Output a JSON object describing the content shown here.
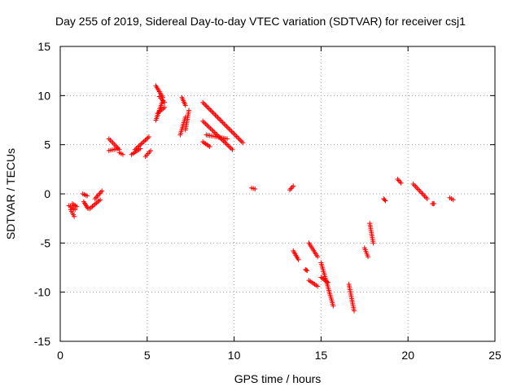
{
  "chart_data": {
    "type": "scatter",
    "title": "Day 255 of 2019, Sidereal Day-to-day VTEC variation (SDTVAR) for receiver csj1",
    "xlabel": "GPS time / hours",
    "ylabel": "SDTVAR / TECUs",
    "xlim": [
      0,
      25
    ],
    "ylim": [
      -15,
      15
    ],
    "xticks": [
      "0",
      "5",
      "10",
      "15",
      "20",
      "25"
    ],
    "yticks": [
      "15",
      "10",
      "5",
      "0",
      "-5",
      "-10",
      "-15"
    ],
    "grid": true,
    "marker": "+",
    "color": "#ff0000",
    "segments": [
      {
        "x": [
          0.5,
          0.85
        ],
        "y": [
          -1.2,
          -1.6
        ]
      },
      {
        "x": [
          0.6,
          0.8
        ],
        "y": [
          -1.6,
          -2.3
        ]
      },
      {
        "x": [
          0.7,
          0.95
        ],
        "y": [
          -1.0,
          -1.3
        ]
      },
      {
        "x": [
          1.3,
          1.55
        ],
        "y": [
          0.0,
          -0.2
        ]
      },
      {
        "x": [
          1.35,
          1.6
        ],
        "y": [
          -0.8,
          -1.5
        ]
      },
      {
        "x": [
          1.7,
          2.3
        ],
        "y": [
          -1.5,
          -0.6
        ]
      },
      {
        "x": [
          2.0,
          2.4
        ],
        "y": [
          -0.5,
          0.3
        ]
      },
      {
        "x": [
          2.8,
          3.4
        ],
        "y": [
          5.6,
          4.5
        ]
      },
      {
        "x": [
          2.8,
          3.3
        ],
        "y": [
          4.4,
          4.6
        ]
      },
      {
        "x": [
          3.4,
          3.6
        ],
        "y": [
          4.2,
          4.0
        ]
      },
      {
        "x": [
          4.1,
          4.6
        ],
        "y": [
          4.0,
          4.6
        ]
      },
      {
        "x": [
          4.3,
          5.1
        ],
        "y": [
          4.5,
          5.8
        ]
      },
      {
        "x": [
          4.9,
          5.2
        ],
        "y": [
          3.8,
          4.4
        ]
      },
      {
        "x": [
          5.5,
          5.9
        ],
        "y": [
          11.0,
          9.8
        ]
      },
      {
        "x": [
          5.7,
          6.0
        ],
        "y": [
          9.9,
          9.3
        ]
      },
      {
        "x": [
          5.5,
          5.9
        ],
        "y": [
          7.5,
          9.5
        ]
      },
      {
        "x": [
          5.6,
          6.0
        ],
        "y": [
          8.2,
          8.8
        ]
      },
      {
        "x": [
          7.0,
          7.2
        ],
        "y": [
          9.8,
          9.0
        ]
      },
      {
        "x": [
          6.9,
          7.2
        ],
        "y": [
          6.0,
          7.8
        ]
      },
      {
        "x": [
          7.2,
          7.4
        ],
        "y": [
          6.5,
          8.5
        ]
      },
      {
        "x": [
          8.2,
          10.5
        ],
        "y": [
          9.3,
          5.2
        ]
      },
      {
        "x": [
          8.2,
          9.9
        ],
        "y": [
          7.4,
          4.5
        ]
      },
      {
        "x": [
          8.4,
          9.6
        ],
        "y": [
          6.0,
          5.6
        ]
      },
      {
        "x": [
          8.2,
          8.6
        ],
        "y": [
          5.3,
          4.8
        ]
      },
      {
        "x": [
          11.0,
          11.2
        ],
        "y": [
          0.6,
          0.5
        ]
      },
      {
        "x": [
          13.2,
          13.4
        ],
        "y": [
          0.4,
          0.8
        ]
      },
      {
        "x": [
          13.4,
          13.7
        ],
        "y": [
          -5.8,
          -6.7
        ]
      },
      {
        "x": [
          14.1,
          14.2
        ],
        "y": [
          -7.7,
          -7.8
        ]
      },
      {
        "x": [
          14.3,
          14.8
        ],
        "y": [
          -5.0,
          -6.4
        ]
      },
      {
        "x": [
          14.3,
          14.8
        ],
        "y": [
          -8.8,
          -9.4
        ]
      },
      {
        "x": [
          15.0,
          15.7
        ],
        "y": [
          -7.0,
          -11.4
        ]
      },
      {
        "x": [
          15.0,
          15.4
        ],
        "y": [
          -8.5,
          -9.0
        ]
      },
      {
        "x": [
          16.6,
          16.9
        ],
        "y": [
          -9.2,
          -11.9
        ]
      },
      {
        "x": [
          17.5,
          17.7
        ],
        "y": [
          -5.5,
          -6.4
        ]
      },
      {
        "x": [
          17.8,
          18.0
        ],
        "y": [
          -3.0,
          -5.0
        ]
      },
      {
        "x": [
          18.6,
          18.7
        ],
        "y": [
          -0.5,
          -0.7
        ]
      },
      {
        "x": [
          19.4,
          19.6
        ],
        "y": [
          1.5,
          1.1
        ]
      },
      {
        "x": [
          20.3,
          21.1
        ],
        "y": [
          1.0,
          -0.5
        ]
      },
      {
        "x": [
          21.4,
          21.5
        ],
        "y": [
          -1.0,
          -1.0
        ]
      },
      {
        "x": [
          22.4,
          22.6
        ],
        "y": [
          -0.4,
          -0.6
        ]
      }
    ]
  }
}
